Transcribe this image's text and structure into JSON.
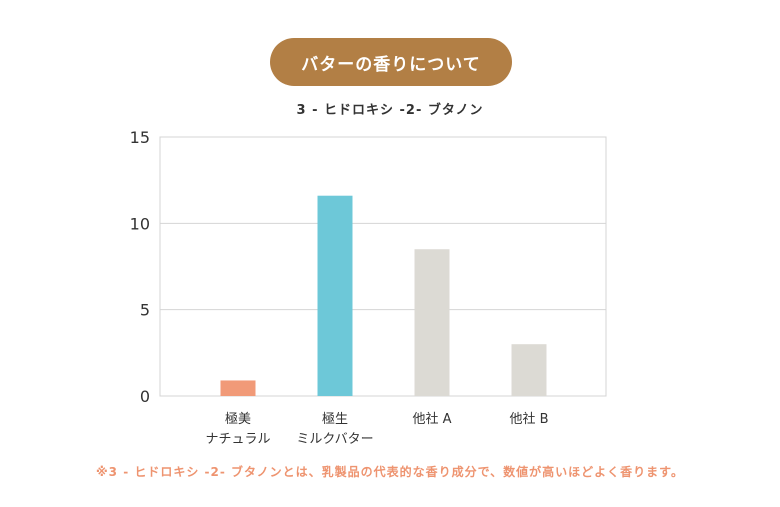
{
  "header": {
    "pill_title": "バターの香りについて"
  },
  "chart_data": {
    "type": "bar",
    "title": "3 - ヒドロキシ -2- ブタノン",
    "categories": [
      [
        "極美",
        "ナチュラル"
      ],
      [
        "極生",
        "ミルクバター"
      ],
      [
        "他社 A"
      ],
      [
        "他社 B"
      ]
    ],
    "values": [
      0.9,
      11.6,
      8.5,
      3.0
    ],
    "colors": [
      "#f19a78",
      "#6dc8d8",
      "#dcdad4",
      "#dcdad4"
    ],
    "ylim": [
      0,
      15
    ],
    "yticks": [
      0,
      5,
      10,
      15
    ],
    "grid": true,
    "xlabel": "",
    "ylabel": ""
  },
  "footnote": "※3 - ヒドロキシ -2- ブタノンとは、乳製品の代表的な香り成分で、数値が高いほどよく香ります。",
  "colors": {
    "pill": "#b27f45",
    "footnote": "#ee9470",
    "grid": "#d4d4d4"
  }
}
